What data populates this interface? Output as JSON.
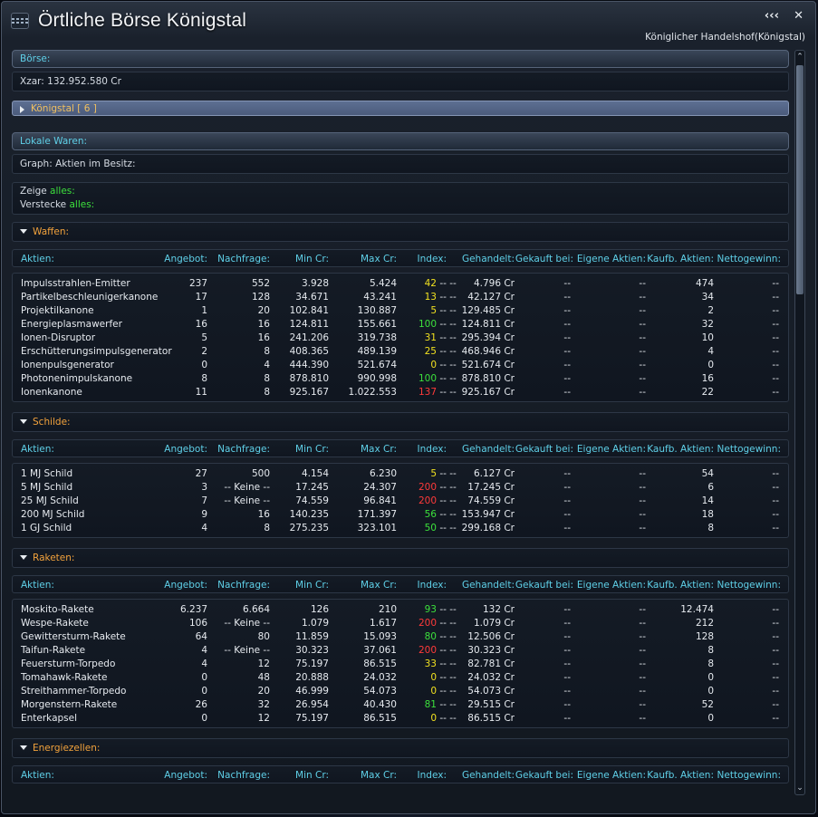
{
  "window": {
    "title": "Örtliche Börse Königstal",
    "subtitle": "Königlicher Handelshof(Königstal)",
    "collapse_label": "‹‹‹",
    "close_label": "✕"
  },
  "boerse": {
    "header": "Börse:",
    "balance": "Xzar: 132.952.580 Cr"
  },
  "location": {
    "label": "Königstal [ 6 ]"
  },
  "lokale": {
    "header": "Lokale Waren:",
    "graph": "Graph: Aktien im Besitz:"
  },
  "filters": {
    "zeige_prefix": "Zeige ",
    "zeige_value": "alles:",
    "verstecke_prefix": "Verstecke ",
    "verstecke_value": "alles:"
  },
  "columns": [
    "Aktien:",
    "Angebot:",
    "Nachfrage:",
    "Min Cr:",
    "Max Cr:",
    "Index:",
    "Gehandelt:",
    "Gekauft bei:",
    "Eigene Aktien:",
    "Kaufb. Aktien:",
    "Nettogewinn:"
  ],
  "sections": [
    {
      "name": "Waffen:",
      "rows": [
        [
          "Impulsstrahlen-Emitter",
          "237",
          "552",
          "3.928",
          "5.424",
          "42",
          "yellow",
          "4.796 Cr",
          "--",
          "--",
          "474",
          "--"
        ],
        [
          "Partikelbeschleunigerkanone",
          "17",
          "128",
          "34.671",
          "43.241",
          "13",
          "yellow",
          "42.127 Cr",
          "--",
          "--",
          "34",
          "--"
        ],
        [
          "Projektilkanone",
          "1",
          "20",
          "102.841",
          "130.887",
          "5",
          "yellow",
          "129.485 Cr",
          "--",
          "--",
          "2",
          "--"
        ],
        [
          "Energieplasmawerfer",
          "16",
          "16",
          "124.811",
          "155.661",
          "100",
          "green",
          "124.811 Cr",
          "--",
          "--",
          "32",
          "--"
        ],
        [
          "Ionen-Disruptor",
          "5",
          "16",
          "241.206",
          "319.738",
          "31",
          "yellow",
          "295.394 Cr",
          "--",
          "--",
          "10",
          "--"
        ],
        [
          "Erschütterungsimpulsgenerator",
          "2",
          "8",
          "408.365",
          "489.139",
          "25",
          "yellow",
          "468.946 Cr",
          "--",
          "--",
          "4",
          "--"
        ],
        [
          "Ionenpulsgenerator",
          "0",
          "4",
          "444.390",
          "521.674",
          "0",
          "yellow",
          "521.674 Cr",
          "--",
          "--",
          "0",
          "--"
        ],
        [
          "Photonenimpulskanone",
          "8",
          "8",
          "878.810",
          "990.998",
          "100",
          "green",
          "878.810 Cr",
          "--",
          "--",
          "16",
          "--"
        ],
        [
          "Ionenkanone",
          "11",
          "8",
          "925.167",
          "1.022.553",
          "137",
          "red",
          "925.167 Cr",
          "--",
          "--",
          "22",
          "--"
        ]
      ]
    },
    {
      "name": "Schilde:",
      "rows": [
        [
          "1 MJ Schild",
          "27",
          "500",
          "4.154",
          "6.230",
          "5",
          "yellow",
          "6.127 Cr",
          "--",
          "--",
          "54",
          "--"
        ],
        [
          "5 MJ Schild",
          "3",
          "-- Keine --",
          "17.245",
          "24.307",
          "200",
          "red",
          "17.245 Cr",
          "--",
          "--",
          "6",
          "--"
        ],
        [
          "25 MJ Schild",
          "7",
          "-- Keine --",
          "74.559",
          "96.841",
          "200",
          "red",
          "74.559 Cr",
          "--",
          "--",
          "14",
          "--"
        ],
        [
          "200 MJ  Schild",
          "9",
          "16",
          "140.235",
          "171.397",
          "56",
          "green",
          "153.947 Cr",
          "--",
          "--",
          "18",
          "--"
        ],
        [
          "1 GJ Schild",
          "4",
          "8",
          "275.235",
          "323.101",
          "50",
          "green",
          "299.168 Cr",
          "--",
          "--",
          "8",
          "--"
        ]
      ]
    },
    {
      "name": "Raketen:",
      "rows": [
        [
          "Moskito-Rakete",
          "6.237",
          "6.664",
          "126",
          "210",
          "93",
          "green",
          "132 Cr",
          "--",
          "--",
          "12.474",
          "--"
        ],
        [
          "Wespe-Rakete",
          "106",
          "-- Keine --",
          "1.079",
          "1.617",
          "200",
          "red",
          "1.079 Cr",
          "--",
          "--",
          "212",
          "--"
        ],
        [
          "Gewittersturm-Rakete",
          "64",
          "80",
          "11.859",
          "15.093",
          "80",
          "green",
          "12.506 Cr",
          "--",
          "--",
          "128",
          "--"
        ],
        [
          "Taifun-Rakete",
          "4",
          "-- Keine --",
          "30.323",
          "37.061",
          "200",
          "red",
          "30.323 Cr",
          "--",
          "--",
          "8",
          "--"
        ],
        [
          "Feuersturm-Torpedo",
          "4",
          "12",
          "75.197",
          "86.515",
          "33",
          "yellow",
          "82.781 Cr",
          "--",
          "--",
          "8",
          "--"
        ],
        [
          "Tomahawk-Rakete",
          "0",
          "48",
          "20.888",
          "24.032",
          "0",
          "yellow",
          "24.032 Cr",
          "--",
          "--",
          "0",
          "--"
        ],
        [
          "Streithammer-Torpedo",
          "0",
          "20",
          "46.999",
          "54.073",
          "0",
          "yellow",
          "54.073 Cr",
          "--",
          "--",
          "0",
          "--"
        ],
        [
          "Morgenstern-Rakete",
          "26",
          "32",
          "26.954",
          "40.430",
          "81",
          "green",
          "29.515 Cr",
          "--",
          "--",
          "52",
          "--"
        ],
        [
          "Enterkapsel",
          "0",
          "12",
          "75.197",
          "86.515",
          "0",
          "yellow",
          "86.515 Cr",
          "--",
          "--",
          "0",
          "--"
        ]
      ]
    },
    {
      "name": "Energiezellen:",
      "rows": []
    }
  ],
  "index_suffix": " -- --",
  "scrollbar": {
    "up": "⌃",
    "down": "⌄"
  }
}
